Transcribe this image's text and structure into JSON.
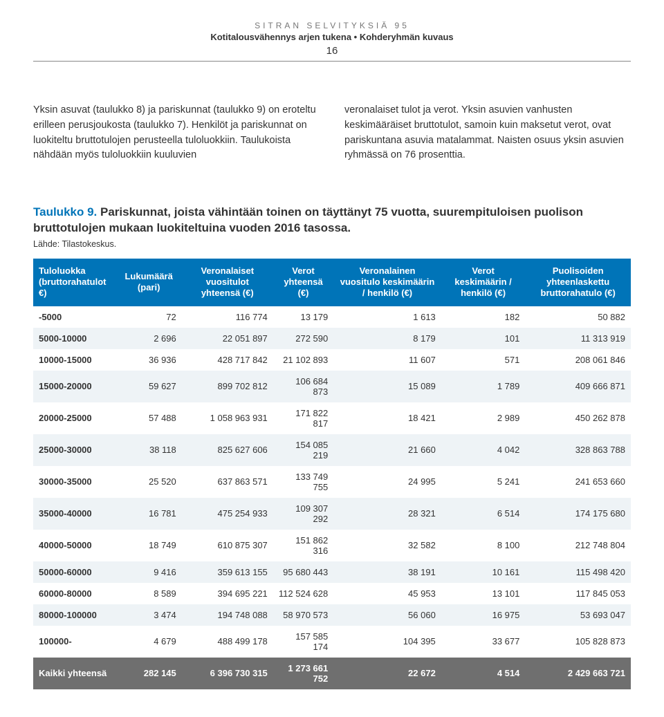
{
  "header": {
    "eyebrow": "SITRAN SELVITYKSIÄ 95",
    "subtitle": "Kotitalousvähennys arjen tukena • Kohderyhmän kuvaus",
    "page_number": "16"
  },
  "body": {
    "left": "Yksin asuvat (taulukko 8) ja pariskunnat (taulukko 9) on eroteltu erilleen perusjoukosta (taulukko 7). Henkilöt ja pariskunnat on luokiteltu bruttotulojen perusteella tuloluokkiin. Taulukoista nähdään myös tuloluokkiin kuuluvien",
    "right": "veronalaiset tulot ja verot. Yksin asuvien vanhusten keskimääräiset bruttotulot, samoin kuin maksetut verot, ovat pariskuntana asuvia matalammat. Naisten osuus yksin asuvien ryhmässä on 76 prosenttia."
  },
  "table": {
    "title_lead": "Taulukko 9.",
    "title_rest": " Pariskunnat, joista vähintään toinen on täyttänyt 75 vuotta, suurempituloisen puolison bruttotulojen mukaan luokiteltuina vuoden 2016 tasossa.",
    "source": "Lähde: Tilastokeskus.",
    "columns": [
      "Tuloluokka (bruttoraha­tulot €)",
      "Lukumäärä (pari)",
      "Veronalaiset vuositulot yhteensä (€)",
      "Verot yhteensä (€)",
      "Veronalainen vuositulo keskimäärin / henkilö (€)",
      "Verot keskimäärin / henkilö (€)",
      "Puolisoiden yhteenlasket­tu bruttoraha­tulo (€)"
    ],
    "rows": [
      [
        "-5000",
        "72",
        "116 774",
        "13 179",
        "1 613",
        "182",
        "50 882"
      ],
      [
        "5000-10000",
        "2 696",
        "22 051 897",
        "272 590",
        "8 179",
        "101",
        "11 313 919"
      ],
      [
        "10000-15000",
        "36 936",
        "428 717 842",
        "21 102 893",
        "11 607",
        "571",
        "208 061 846"
      ],
      [
        "15000-20000",
        "59 627",
        "899 702 812",
        "106 684 873",
        "15 089",
        "1 789",
        "409 666 871"
      ],
      [
        "20000-25000",
        "57 488",
        "1 058 963 931",
        "171 822 817",
        "18 421",
        "2 989",
        "450 262 878"
      ],
      [
        "25000-30000",
        "38 118",
        "825 627 606",
        "154 085 219",
        "21 660",
        "4 042",
        "328 863 788"
      ],
      [
        "30000-35000",
        "25 520",
        "637 863 571",
        "133 749 755",
        "24 995",
        "5 241",
        "241 653 660"
      ],
      [
        "35000-40000",
        "16 781",
        "475 254 933",
        "109 307 292",
        "28 321",
        "6 514",
        "174 175 680"
      ],
      [
        "40000-50000",
        "18 749",
        "610 875 307",
        "151 862 316",
        "32 582",
        "8 100",
        "212 748 804"
      ],
      [
        "50000-60000",
        "9 416",
        "359 613 155",
        "95 680 443",
        "38 191",
        "10 161",
        "115 498 420"
      ],
      [
        "60000-80000",
        "8 589",
        "394 695 221",
        "112 524 628",
        "45 953",
        "13 101",
        "117 845 053"
      ],
      [
        "80000-100000",
        "3 474",
        "194 748 088",
        "58 970 573",
        "56 060",
        "16 975",
        "53 693 047"
      ],
      [
        "100000-",
        "4 679",
        "488 499 178",
        "157 585 174",
        "104 395",
        "33 677",
        "105 828 873"
      ]
    ],
    "total_row": [
      "Kaikki yhteensä",
      "282 145",
      "6 396 730 315",
      "1 273 661 752",
      "22 672",
      "4 514",
      "2 429 663 721"
    ],
    "header_bg": "#0074b8",
    "band_a_bg": "#ffffff",
    "band_b_bg": "#eef3f6",
    "total_bg": "#6f6f6f"
  }
}
